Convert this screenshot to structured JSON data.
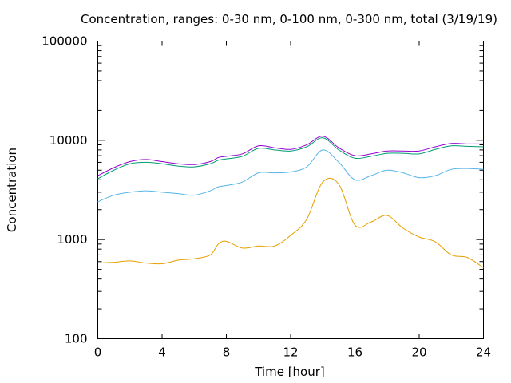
{
  "chart_data": {
    "type": "line",
    "title": "Concentration, ranges: 0-30 nm, 0-100 nm, 0-300 nm, total (3/19/19)",
    "xlabel": "Time [hour]",
    "ylabel": "Concentration",
    "xlim": [
      0,
      24
    ],
    "ylim": [
      100,
      100000
    ],
    "yscale": "log",
    "grid": false,
    "legend": false,
    "xticks": [
      0,
      4,
      8,
      12,
      16,
      20,
      24
    ],
    "xtick_labels": [
      "0",
      "4",
      "8",
      "12",
      "16",
      "20",
      "24"
    ],
    "yticks": [
      100,
      1000,
      10000,
      100000
    ],
    "ytick_labels": [
      "100",
      "1000",
      "10000",
      "100000"
    ],
    "x": [
      0,
      1,
      2,
      3,
      4,
      5,
      6,
      7,
      7.5,
      8,
      9,
      10,
      11,
      12,
      13,
      14,
      15,
      16,
      17,
      18,
      19,
      20,
      21,
      22,
      23,
      24
    ],
    "series": [
      {
        "color": "#9400d3",
        "values": [
          4400,
          5300,
          6100,
          6400,
          6100,
          5800,
          5700,
          6100,
          6700,
          6900,
          7300,
          8800,
          8400,
          8100,
          9000,
          11000,
          8400,
          7000,
          7300,
          7800,
          7800,
          7800,
          8600,
          9300,
          9200,
          9200
        ]
      },
      {
        "color": "#009e73",
        "values": [
          4100,
          5000,
          5800,
          6000,
          5800,
          5500,
          5400,
          5800,
          6300,
          6500,
          6900,
          8300,
          8000,
          7800,
          8600,
          10600,
          8000,
          6600,
          6900,
          7400,
          7400,
          7300,
          8100,
          8800,
          8700,
          8600
        ]
      },
      {
        "color": "#56b4e9",
        "values": [
          2400,
          2800,
          3000,
          3100,
          3000,
          2900,
          2800,
          3100,
          3400,
          3500,
          3800,
          4700,
          4700,
          4800,
          5400,
          8000,
          6000,
          4000,
          4400,
          5000,
          4700,
          4200,
          4400,
          5100,
          5200,
          5100
        ]
      },
      {
        "color": "#e69f00",
        "values": [
          580,
          590,
          610,
          580,
          570,
          620,
          640,
          700,
          900,
          960,
          820,
          860,
          860,
          1100,
          1600,
          3800,
          3600,
          1400,
          1500,
          1750,
          1300,
          1060,
          950,
          700,
          660,
          520
        ]
      }
    ]
  }
}
